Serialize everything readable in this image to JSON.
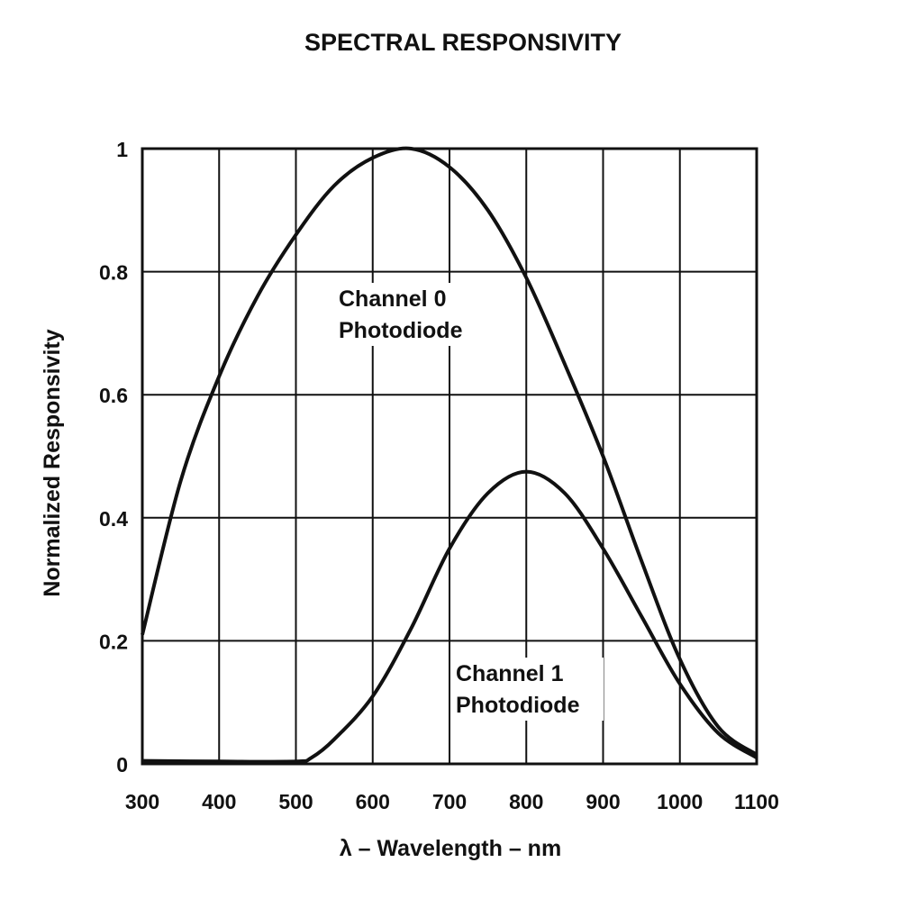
{
  "chart_data": {
    "type": "line",
    "title": "SPECTRAL RESPONSIVITY",
    "xlabel": "λ – Wavelength – nm",
    "ylabel": "Normalized Responsivity",
    "xlim": [
      300,
      1100
    ],
    "ylim": [
      0,
      1
    ],
    "grid": true,
    "x_ticks": [
      "300",
      "400",
      "500",
      "600",
      "700",
      "800",
      "900",
      "1000",
      "1100"
    ],
    "y_ticks": [
      "0",
      "0.2",
      "0.4",
      "0.6",
      "0.8",
      "1"
    ],
    "series": [
      {
        "name": "Channel 0 Photodiode",
        "x": [
          300,
          350,
          400,
          450,
          500,
          550,
          600,
          650,
          700,
          750,
          800,
          850,
          900,
          950,
          1000,
          1050,
          1100
        ],
        "y": [
          0.21,
          0.46,
          0.63,
          0.76,
          0.86,
          0.94,
          0.985,
          1.0,
          0.97,
          0.9,
          0.79,
          0.65,
          0.5,
          0.33,
          0.17,
          0.06,
          0.015
        ]
      },
      {
        "name": "Channel 1 Photodiode",
        "x": [
          300,
          400,
          500,
          520,
          550,
          600,
          650,
          700,
          750,
          800,
          850,
          900,
          950,
          1000,
          1050,
          1100
        ],
        "y": [
          0.005,
          0.004,
          0.004,
          0.01,
          0.04,
          0.11,
          0.22,
          0.35,
          0.44,
          0.475,
          0.44,
          0.35,
          0.24,
          0.13,
          0.05,
          0.01
        ]
      }
    ],
    "annotations": [
      {
        "lines": [
          "Channel 0",
          "Photodiode"
        ]
      },
      {
        "lines": [
          "Channel 1",
          "Photodiode"
        ]
      }
    ]
  }
}
